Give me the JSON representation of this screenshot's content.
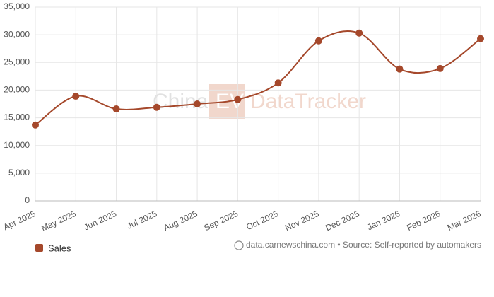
{
  "chart_data": {
    "type": "line",
    "watermark": {
      "left": "China",
      "box": "EV",
      "right": "DataTracker"
    },
    "categories": [
      "Apr 2025",
      "May 2025",
      "Jun 2025",
      "Jul 2025",
      "Aug 2025",
      "Sep 2025",
      "Oct 2025",
      "Nov 2025",
      "Dec 2025",
      "Jan 2026",
      "Feb 2026",
      "Mar 2026"
    ],
    "series": [
      {
        "name": "Sales",
        "color": "#a5482b",
        "values": [
          13700,
          18900,
          16600,
          16900,
          17500,
          18300,
          21300,
          28900,
          30300,
          23800,
          23900,
          29300
        ]
      }
    ],
    "ylim": [
      0,
      35000
    ],
    "yticks": [
      0,
      {
        "value": 5000,
        "label": "5,000"
      },
      {
        "value": 10000,
        "label": "10,000"
      },
      {
        "value": 15000,
        "label": "15,000"
      },
      {
        "value": 20000,
        "label": "20,000"
      },
      {
        "value": 25000,
        "label": "25,000"
      },
      {
        "value": 30000,
        "label": "30,000"
      },
      {
        "value": 35000,
        "label": "35,000"
      }
    ],
    "grid": true,
    "legend": "bottom-left",
    "footer": "data.carnewschina.com • Source: Self-reported by automakers"
  }
}
